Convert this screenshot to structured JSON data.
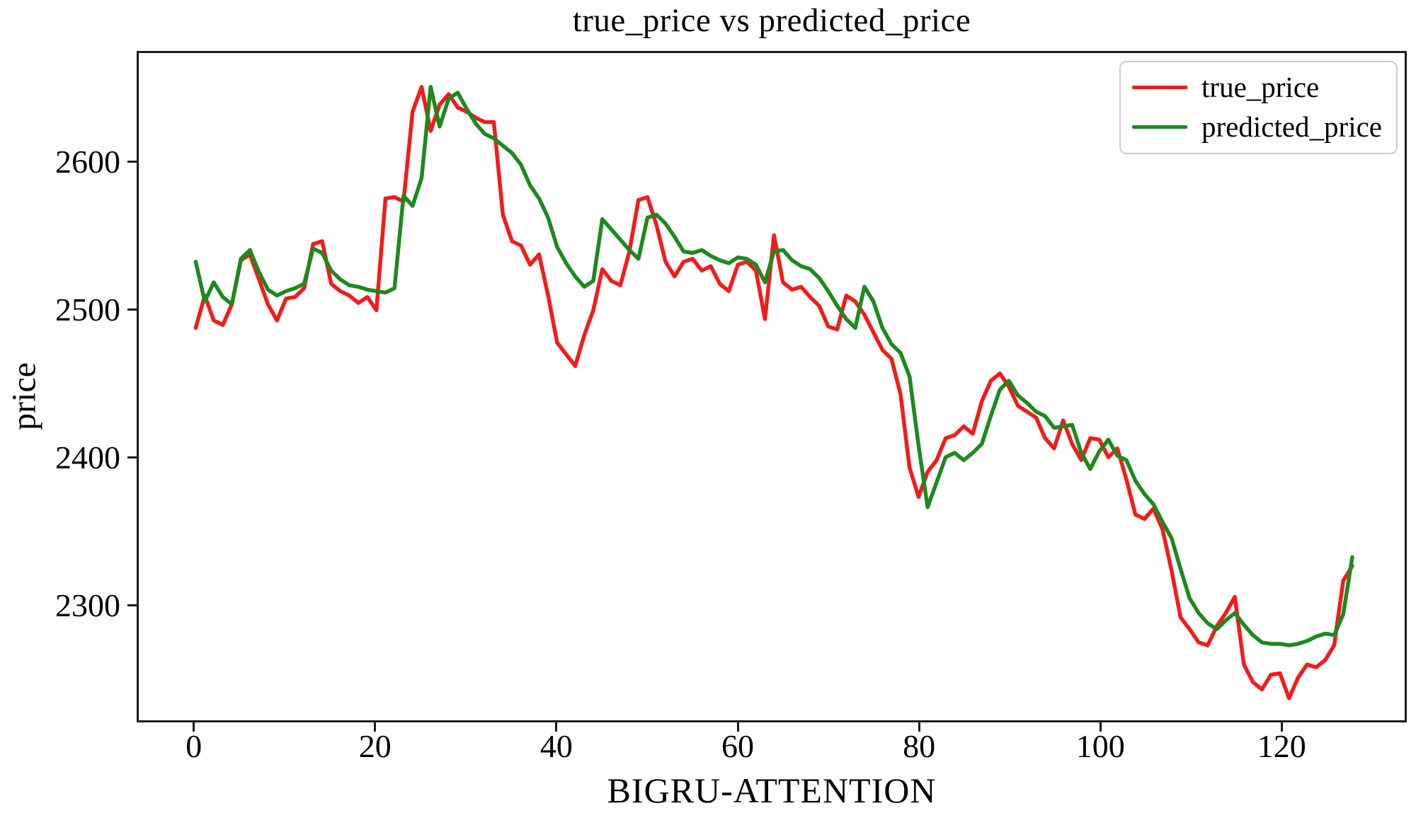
{
  "chart_data": {
    "type": "line",
    "title": "true_price vs predicted_price",
    "xlabel": "BIGRU-ATTENTION",
    "ylabel": "price",
    "grid": false,
    "legend_position": "upper right",
    "xlim": [
      -6.3,
      133.8
    ],
    "ylim": [
      2221,
      2675
    ],
    "x_ticks": [
      0,
      20,
      40,
      60,
      80,
      100,
      120
    ],
    "y_ticks": [
      2300,
      2400,
      2500,
      2600
    ],
    "x_start": 0,
    "x_step": 1,
    "colors": {
      "true_price": "#f51a1a",
      "predicted_price": "#1c8a1c",
      "spine": "#1c1c1c"
    },
    "series": [
      {
        "name": "true_price",
        "color": "#f51a1a",
        "values": [
          2488,
          2510,
          2493,
          2490,
          2504,
          2534,
          2538,
          2521,
          2504,
          2493,
          2508,
          2509,
          2515,
          2545,
          2547,
          2518,
          2513,
          2510,
          2505,
          2509,
          2500,
          2576,
          2577,
          2574,
          2635,
          2652,
          2622,
          2640,
          2647,
          2638,
          2635,
          2631,
          2628,
          2628,
          2565,
          2547,
          2544,
          2531,
          2538,
          2510,
          2478,
          2470,
          2462,
          2483,
          2500,
          2528,
          2520,
          2517,
          2540,
          2575,
          2577,
          2558,
          2533,
          2523,
          2533,
          2535,
          2527,
          2530,
          2518,
          2513,
          2531,
          2533,
          2527,
          2494,
          2551,
          2519,
          2514,
          2516,
          2509,
          2503,
          2489,
          2487,
          2510,
          2506,
          2497,
          2485,
          2473,
          2467,
          2443,
          2393,
          2373,
          2390,
          2398,
          2413,
          2415,
          2421,
          2416,
          2438,
          2452,
          2457,
          2448,
          2435,
          2431,
          2427,
          2413,
          2406,
          2425,
          2409,
          2398,
          2413,
          2412,
          2400,
          2406,
          2385,
          2361,
          2358,
          2365,
          2351,
          2323,
          2291,
          2283,
          2274,
          2272,
          2285,
          2294,
          2305,
          2259,
          2247,
          2242,
          2252,
          2253,
          2236,
          2250,
          2259,
          2257,
          2262,
          2272,
          2316,
          2326
        ]
      },
      {
        "name": "predicted_price",
        "color": "#1c8a1c",
        "values": [
          2533,
          2506,
          2519,
          2509,
          2504,
          2535,
          2541,
          2526,
          2514,
          2510,
          2513,
          2515,
          2518,
          2542,
          2539,
          2527,
          2521,
          2517,
          2516,
          2514,
          2513,
          2512,
          2515,
          2578,
          2571,
          2590,
          2652,
          2625,
          2644,
          2648,
          2637,
          2627,
          2620,
          2617,
          2612,
          2607,
          2599,
          2585,
          2576,
          2563,
          2543,
          2532,
          2523,
          2516,
          2520,
          2562,
          2555,
          2548,
          2541,
          2535,
          2563,
          2565,
          2559,
          2550,
          2540,
          2539,
          2541,
          2537,
          2534,
          2532,
          2536,
          2535,
          2531,
          2519,
          2540,
          2541,
          2534,
          2530,
          2528,
          2522,
          2513,
          2503,
          2494,
          2488,
          2516,
          2506,
          2488,
          2477,
          2471,
          2455,
          2408,
          2366,
          2383,
          2400,
          2403,
          2398,
          2403,
          2409,
          2428,
          2446,
          2452,
          2442,
          2437,
          2431,
          2428,
          2420,
          2421,
          2422,
          2403,
          2392,
          2404,
          2412,
          2401,
          2398,
          2384,
          2375,
          2368,
          2356,
          2345,
          2324,
          2304,
          2294,
          2287,
          2283,
          2289,
          2294,
          2286,
          2279,
          2274,
          2273,
          2273,
          2272,
          2273,
          2275,
          2278,
          2280,
          2279,
          2293,
          2332
        ]
      }
    ]
  }
}
